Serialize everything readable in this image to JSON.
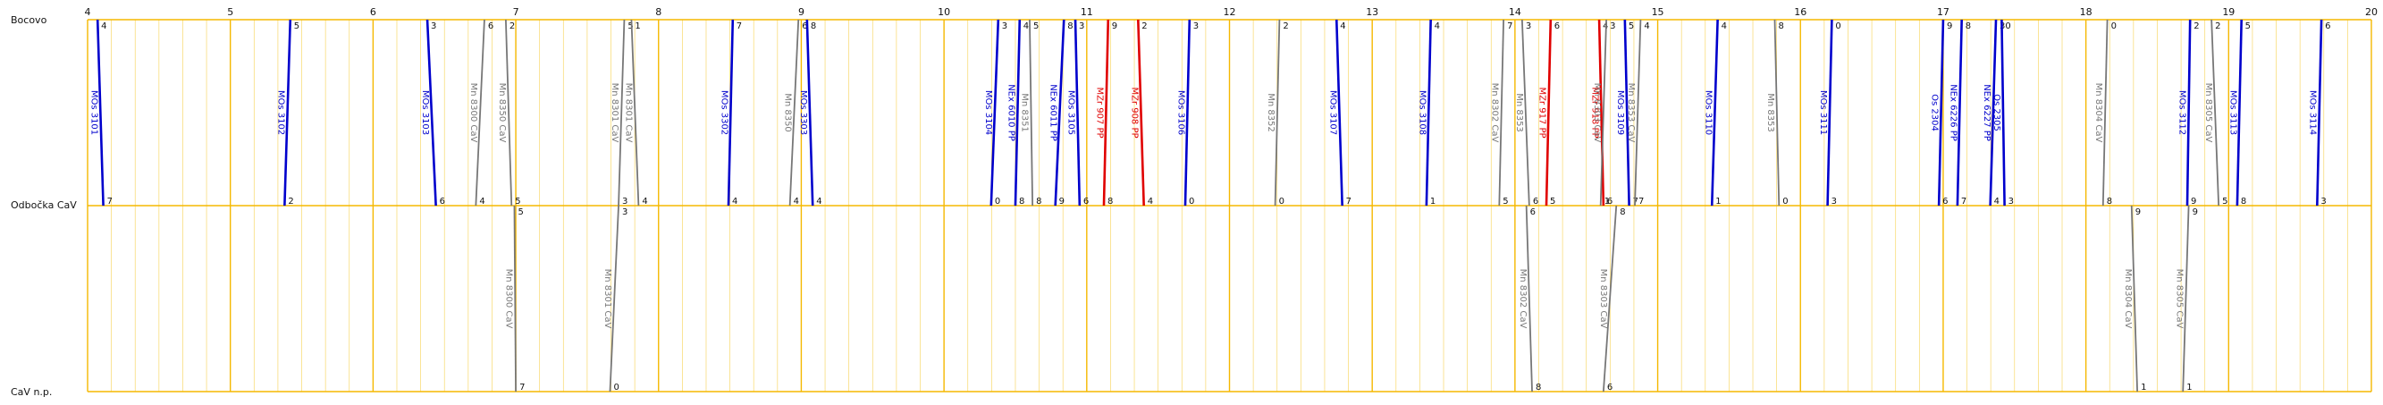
{
  "stations": [
    {
      "id": "bocovo",
      "label": "Bocovo"
    },
    {
      "id": "odbocka",
      "label": "Odbočka CaV"
    },
    {
      "id": "cav",
      "label": "CaV n.p."
    }
  ],
  "hours": [
    "4",
    "5",
    "6",
    "7",
    "8",
    "9",
    "10",
    "11",
    "12",
    "13",
    "14",
    "15",
    "16",
    "17",
    "18",
    "19",
    "20"
  ],
  "colors": {
    "grid_major": "#f5b800",
    "grid_minor": "#f8d86a",
    "blue": "#0000cc",
    "red": "#e00000",
    "gray": "#777777"
  },
  "trains": [
    {
      "name": "MOs 3101",
      "color": "blue",
      "segment": "upper",
      "from": [
        4.07,
        "4"
      ],
      "to": [
        4.11,
        "7"
      ]
    },
    {
      "name": "MOs 3102",
      "color": "blue",
      "segment": "upper",
      "from": [
        5.42,
        "5"
      ],
      "to": [
        5.38,
        "2"
      ]
    },
    {
      "name": "MOs 3103",
      "color": "blue",
      "segment": "upper",
      "from": [
        6.38,
        "3"
      ],
      "to": [
        6.44,
        "6"
      ]
    },
    {
      "name": "Mn 8300 CaV",
      "color": "gray",
      "segment": "upper",
      "from": [
        6.78,
        "6"
      ],
      "to": [
        6.72,
        "4"
      ]
    },
    {
      "name": "Mn 8350 CaV",
      "color": "gray",
      "segment": "upper",
      "from": [
        6.93,
        "2"
      ],
      "to": [
        6.97,
        "5"
      ]
    },
    {
      "name": "Mn 8300 CaV",
      "color": "gray",
      "segment": "lower",
      "from": [
        6.99,
        "5"
      ],
      "to": [
        7.0,
        "7"
      ]
    },
    {
      "name": "Mn 8301 CaV",
      "color": "gray",
      "segment": "upper",
      "from": [
        7.76,
        "5"
      ],
      "to": [
        7.72,
        "3"
      ]
    },
    {
      "name": "Mn 8301 CaV",
      "color": "gray",
      "segment": "lower",
      "from": [
        7.72,
        "3"
      ],
      "to": [
        7.66,
        "0"
      ]
    },
    {
      "name": "Mn 8301 CaV",
      "color": "gray",
      "segment": "upper",
      "from": [
        7.81,
        "1"
      ],
      "to": [
        7.86,
        "4"
      ]
    },
    {
      "name": "MOs 3302",
      "color": "blue",
      "segment": "upper",
      "from": [
        8.52,
        "7"
      ],
      "to": [
        8.49,
        "4"
      ]
    },
    {
      "name": "Mn 8350",
      "color": "gray",
      "segment": "upper",
      "from": [
        8.98,
        "6"
      ],
      "to": [
        8.92,
        "4"
      ]
    },
    {
      "name": "MOs 3303",
      "color": "blue",
      "segment": "upper",
      "from": [
        9.04,
        "8"
      ],
      "to": [
        9.08,
        "4"
      ]
    },
    {
      "name": "MOs 3104",
      "color": "blue",
      "segment": "upper",
      "from": [
        10.38,
        "3"
      ],
      "to": [
        10.33,
        "0"
      ]
    },
    {
      "name": "NEx 6010 PP",
      "color": "blue",
      "segment": "upper",
      "from": [
        10.53,
        "4"
      ],
      "to": [
        10.5,
        "8"
      ]
    },
    {
      "name": "Mn 8351",
      "color": "gray",
      "segment": "upper",
      "from": [
        10.6,
        "5"
      ],
      "to": [
        10.62,
        "8"
      ]
    },
    {
      "name": "NEx 6011 PP",
      "color": "blue",
      "segment": "upper",
      "from": [
        10.84,
        "8"
      ],
      "to": [
        10.78,
        "9"
      ]
    },
    {
      "name": "MOs 3105",
      "color": "blue",
      "segment": "upper",
      "from": [
        10.92,
        "3"
      ],
      "to": [
        10.95,
        "6"
      ]
    },
    {
      "name": "MZr 907 PP",
      "color": "red",
      "segment": "upper",
      "from": [
        11.15,
        "9"
      ],
      "to": [
        11.12,
        "8"
      ]
    },
    {
      "name": "MZr 908 PP",
      "color": "red",
      "segment": "upper",
      "from": [
        11.36,
        "2"
      ],
      "to": [
        11.4,
        "4"
      ]
    },
    {
      "name": "MOs 3106",
      "color": "blue",
      "segment": "upper",
      "from": [
        11.72,
        "3"
      ],
      "to": [
        11.69,
        "0"
      ]
    },
    {
      "name": "Mn 8352",
      "color": "gray",
      "segment": "upper",
      "from": [
        12.35,
        "2"
      ],
      "to": [
        12.32,
        "0"
      ]
    },
    {
      "name": "MOs 3107",
      "color": "blue",
      "segment": "upper",
      "from": [
        12.75,
        "4"
      ],
      "to": [
        12.79,
        "7"
      ]
    },
    {
      "name": "MOs 3108",
      "color": "blue",
      "segment": "upper",
      "from": [
        13.41,
        "4"
      ],
      "to": [
        13.38,
        "1"
      ]
    },
    {
      "name": "Mn 8302 CaV",
      "color": "gray",
      "segment": "upper",
      "from": [
        13.92,
        "7"
      ],
      "to": [
        13.89,
        "5"
      ]
    },
    {
      "name": "Mn 8302 CaV",
      "color": "gray",
      "segment": "lower",
      "from": [
        14.08,
        "6"
      ],
      "to": [
        14.12,
        "8"
      ]
    },
    {
      "name": "Mn 8353",
      "color": "gray",
      "segment": "upper",
      "from": [
        14.05,
        "3"
      ],
      "to": [
        14.1,
        "6"
      ]
    },
    {
      "name": "MZr 917 PP",
      "color": "red",
      "segment": "upper",
      "from": [
        14.25,
        "6"
      ],
      "to": [
        14.22,
        "5"
      ]
    },
    {
      "name": "MZr 918 PP",
      "color": "red",
      "segment": "upper",
      "from": [
        14.59,
        "4"
      ],
      "to": [
        14.62,
        "6"
      ]
    },
    {
      "name": "Mn 8303 CaV",
      "color": "gray",
      "segment": "upper",
      "from": [
        14.64,
        "3"
      ],
      "to": [
        14.6,
        "1"
      ]
    },
    {
      "name": "Mn 8303 CaV",
      "color": "gray",
      "segment": "lower",
      "from": [
        14.71,
        "8"
      ],
      "to": [
        14.62,
        "6"
      ]
    },
    {
      "name": "MOs 3109",
      "color": "blue",
      "segment": "upper",
      "from": [
        14.77,
        "5"
      ],
      "to": [
        14.8,
        "7"
      ]
    },
    {
      "name": "Mn 8353 CaV",
      "color": "gray",
      "segment": "upper",
      "from": [
        14.88,
        "4"
      ],
      "to": [
        14.84,
        "7"
      ]
    },
    {
      "name": "MOs 3110",
      "color": "blue",
      "segment": "upper",
      "from": [
        15.42,
        "4"
      ],
      "to": [
        15.38,
        "1"
      ]
    },
    {
      "name": "Mn 8353",
      "color": "gray",
      "segment": "upper",
      "from": [
        15.82,
        "8"
      ],
      "to": [
        15.85,
        "0"
      ]
    },
    {
      "name": "MOs 3111",
      "color": "blue",
      "segment": "upper",
      "from": [
        16.22,
        "0"
      ],
      "to": [
        16.19,
        "3"
      ]
    },
    {
      "name": "Os 2304",
      "color": "blue",
      "segment": "upper",
      "from": [
        17.0,
        "9"
      ],
      "to": [
        16.97,
        "6"
      ]
    },
    {
      "name": "NEx 6226 PP",
      "color": "blue",
      "segment": "upper",
      "from": [
        17.13,
        "8"
      ],
      "to": [
        17.1,
        "7"
      ]
    },
    {
      "name": "NEx 6227 PP",
      "color": "blue",
      "segment": "upper",
      "from": [
        17.37,
        "3"
      ],
      "to": [
        17.33,
        "4"
      ]
    },
    {
      "name": "Os 2305",
      "color": "blue",
      "segment": "upper",
      "from": [
        17.41,
        "0"
      ],
      "to": [
        17.43,
        "3"
      ]
    },
    {
      "name": "Mn 8304 CaV",
      "color": "gray",
      "segment": "upper",
      "from": [
        18.15,
        "0"
      ],
      "to": [
        18.12,
        "8"
      ]
    },
    {
      "name": "Mn 8304 CaV",
      "color": "gray",
      "segment": "lower",
      "from": [
        18.32,
        "9"
      ],
      "to": [
        18.36,
        "1"
      ]
    },
    {
      "name": "Mn 8305 CaV",
      "color": "gray",
      "segment": "lower",
      "from": [
        18.72,
        "9"
      ],
      "to": [
        18.68,
        "1"
      ]
    },
    {
      "name": "MOs 3112",
      "color": "blue",
      "segment": "upper",
      "from": [
        18.73,
        "2"
      ],
      "to": [
        18.71,
        "9"
      ]
    },
    {
      "name": "Mn 8305 CaV",
      "color": "gray",
      "segment": "upper",
      "from": [
        18.88,
        "2"
      ],
      "to": [
        18.93,
        "5"
      ]
    },
    {
      "name": "MOs 3113",
      "color": "blue",
      "segment": "upper",
      "from": [
        19.09,
        "5"
      ],
      "to": [
        19.06,
        "8"
      ]
    },
    {
      "name": "MOs 3114",
      "color": "blue",
      "segment": "upper",
      "from": [
        19.65,
        "6"
      ],
      "to": [
        19.62,
        "3"
      ]
    }
  ]
}
